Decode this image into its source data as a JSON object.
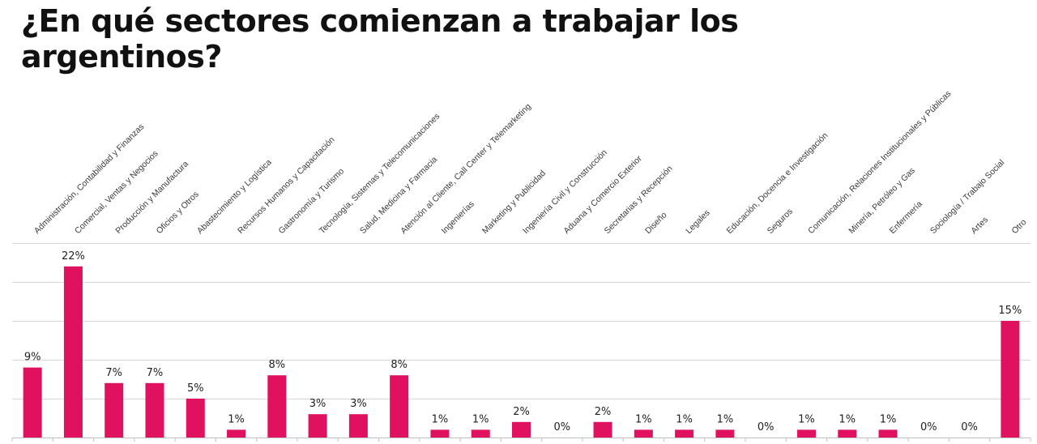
{
  "title": "¿En qué sectores comienzan a trabajar los argentinos?",
  "colors": {
    "bar": "#e0115f",
    "grid": "#d9d9d9",
    "axis": "#bfbfbf",
    "text": "#222222"
  },
  "chart_data": {
    "type": "bar",
    "title": "¿En qué sectores comienzan a trabajar los argentinos?",
    "xlabel": "",
    "ylabel": "",
    "ylim": [
      0,
      25
    ],
    "grid": true,
    "value_suffix": "%",
    "categories": [
      "Administración, Contabilidad y Finanzas",
      "Comercial, Ventas y Negocios",
      "Producción y Manufactura",
      "Oficios y Otros",
      "Abastecimiento y Logística",
      "Recursos Humanos y Capacitación",
      "Gastronomía y Turismo",
      "Tecnología, Sistemas y Telecomunicaciones",
      "Salud, Medicina y Farmacia",
      "Atención al Cliente, Call Center y Telemarketing",
      "Ingenierías",
      "Marketing y Publicidad",
      "Ingeniería Civil y Construcción",
      "Aduana y Comercio Exterior",
      "Secretarias y Recepción",
      "Diseño",
      "Legales",
      "Educación, Docencia e Investigación",
      "Seguros",
      "Comunicación, Relaciones Institucionales y Públicas",
      "Minería, Petróleo y Gas",
      "Enfermería",
      "Sociología / Trabajo Social",
      "Artes",
      "Otro"
    ],
    "values": [
      9,
      22,
      7,
      7,
      5,
      1,
      8,
      3,
      3,
      8,
      1,
      1,
      2,
      0,
      2,
      1,
      1,
      1,
      0,
      1,
      1,
      1,
      0,
      0,
      15
    ],
    "data_labels": [
      "9%",
      "22%",
      "7%",
      "7%",
      "5%",
      "1%",
      "8%",
      "3%",
      "3%",
      "8%",
      "1%",
      "1%",
      "2%",
      "0%",
      "2%",
      "1%",
      "1%",
      "1%",
      "0%",
      "1%",
      "1%",
      "1%",
      "0%",
      "0%",
      "15%"
    ]
  }
}
